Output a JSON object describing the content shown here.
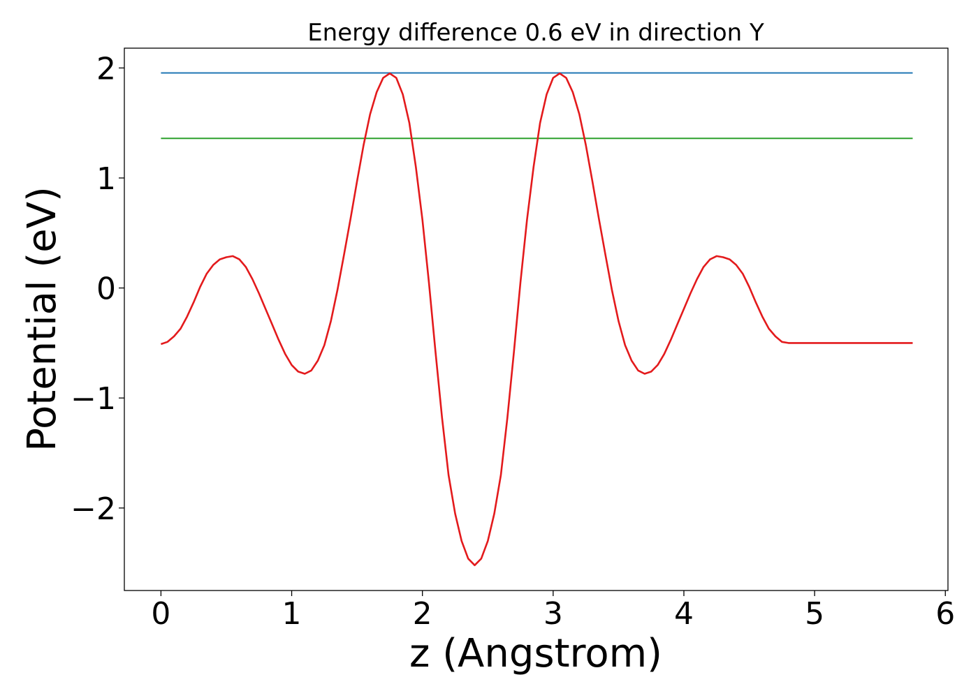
{
  "chart_data": {
    "type": "line",
    "title": "Energy difference 0.6 eV in direction Y",
    "xlabel": "z (Angstrom)",
    "ylabel": "Potential (eV)",
    "xlim": [
      -0.28,
      6.02
    ],
    "ylim": [
      -2.75,
      2.18
    ],
    "xticks": [
      0,
      1,
      2,
      3,
      4,
      5,
      6
    ],
    "xtick_labels": [
      "0",
      "1",
      "2",
      "3",
      "4",
      "5",
      "6"
    ],
    "yticks": [
      -2,
      -1,
      0,
      1,
      2
    ],
    "ytick_labels": [
      "−2",
      "−1",
      "0",
      "1",
      "2"
    ],
    "grid": false,
    "legend": "none",
    "series": [
      {
        "color": "#1f77b4",
        "x": [
          0,
          5.75
        ],
        "y": [
          1.955,
          1.955
        ]
      },
      {
        "color": "#2ca02c",
        "x": [
          0,
          5.75
        ],
        "y": [
          1.36,
          1.36
        ]
      },
      {
        "color": "#e31a1c",
        "x": [
          0,
          0.05,
          0.1,
          0.15,
          0.2,
          0.25,
          0.3,
          0.35,
          0.4,
          0.45,
          0.5,
          0.55,
          0.6,
          0.65,
          0.7,
          0.75,
          0.8,
          0.85,
          0.9,
          0.95,
          1.0,
          1.05,
          1.1,
          1.15,
          1.2,
          1.25,
          1.3,
          1.35,
          1.4,
          1.45,
          1.5,
          1.55,
          1.6,
          1.65,
          1.7,
          1.75,
          1.8,
          1.85,
          1.9,
          1.95,
          2.0,
          2.05,
          2.1,
          2.15,
          2.2,
          2.25,
          2.3,
          2.35,
          2.4,
          2.45,
          2.5,
          2.55,
          2.6,
          2.65,
          2.7,
          2.75,
          2.8,
          2.85,
          2.9,
          2.95,
          3.0,
          3.05,
          3.1,
          3.15,
          3.2,
          3.25,
          3.3,
          3.35,
          3.4,
          3.45,
          3.5,
          3.55,
          3.6,
          3.65,
          3.7,
          3.75,
          3.8,
          3.85,
          3.9,
          3.95,
          4.0,
          4.05,
          4.1,
          4.15,
          4.2,
          4.25,
          4.3,
          4.35,
          4.4,
          4.45,
          4.5,
          4.55,
          4.6,
          4.65,
          4.7,
          4.75,
          4.8,
          4.85,
          4.9,
          4.95,
          5.0,
          5.05,
          5.1,
          5.15,
          5.2,
          5.25,
          5.3,
          5.35,
          5.4,
          5.45,
          5.5,
          5.55,
          5.6,
          5.65,
          5.7,
          5.75
        ],
        "y": [
          -0.51,
          -0.49,
          -0.44,
          -0.37,
          -0.26,
          -0.13,
          0.01,
          0.13,
          0.21,
          0.26,
          0.28,
          0.29,
          0.26,
          0.19,
          0.08,
          -0.05,
          -0.19,
          -0.33,
          -0.47,
          -0.6,
          -0.7,
          -0.76,
          -0.78,
          -0.75,
          -0.66,
          -0.52,
          -0.3,
          -0.02,
          0.3,
          0.63,
          0.97,
          1.3,
          1.58,
          1.78,
          1.91,
          1.95,
          1.91,
          1.76,
          1.5,
          1.1,
          0.62,
          0.05,
          -0.58,
          -1.18,
          -1.7,
          -2.05,
          -2.3,
          -2.46,
          -2.52,
          -2.46,
          -2.3,
          -2.05,
          -1.7,
          -1.18,
          -0.58,
          0.05,
          0.62,
          1.1,
          1.5,
          1.76,
          1.91,
          1.95,
          1.91,
          1.78,
          1.58,
          1.3,
          0.97,
          0.63,
          0.3,
          -0.02,
          -0.3,
          -0.52,
          -0.66,
          -0.75,
          -0.78,
          -0.76,
          -0.7,
          -0.6,
          -0.47,
          -0.33,
          -0.19,
          -0.05,
          0.08,
          0.19,
          0.26,
          0.29,
          0.28,
          0.26,
          0.21,
          0.13,
          0.01,
          -0.13,
          -0.26,
          -0.37,
          -0.44,
          -0.49,
          -0.5,
          -0.5,
          -0.5,
          -0.5,
          -0.5,
          -0.5,
          -0.5,
          -0.5,
          -0.5,
          -0.5,
          -0.5,
          -0.5,
          -0.5,
          -0.5,
          -0.5,
          -0.5,
          -0.5,
          -0.5,
          -0.5,
          -0.5
        ]
      }
    ]
  }
}
